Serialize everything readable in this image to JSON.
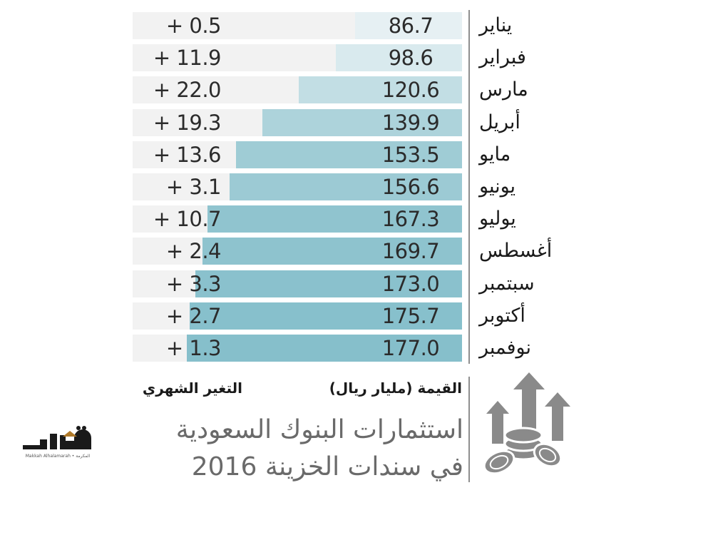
{
  "chart_data": {
    "type": "bar",
    "title": "استثمارات البنوك السعودية",
    "subtitle": "في سندات الخزينة 2016",
    "value_label": "القيمة (مليار ريال)",
    "change_label": "التغير الشهري",
    "categories": [
      "يناير",
      "فبراير",
      "مارس",
      "أبريل",
      "مايو",
      "يونيو",
      "يوليو",
      "أغسطس",
      "سبتمبر",
      "أكتوبر",
      "نوفمبر"
    ],
    "series": [
      {
        "values": [
          86.7,
          98.6,
          120.6,
          139.9,
          153.5,
          156.6,
          167.3,
          169.7,
          173.0,
          175.7,
          177.0
        ]
      }
    ],
    "value_labels": [
      "86.7",
      "98.6",
      "120.6",
      "139.9",
      "153.5",
      "156.6",
      "167.3",
      "169.7",
      "173.0",
      "175.7",
      "177.0"
    ],
    "change_labels": [
      "+ 0.5",
      "+ 11.9",
      "+ 22.0",
      "+ 19.3",
      "+ 13.6",
      "+ 3.1",
      "+ 10.7",
      "+ 2.4",
      "+ 3.3",
      "+ 2.7",
      "+ 1.3"
    ],
    "orientation": "horizontal",
    "bar_direction": "right-to-left",
    "grid": false,
    "colors": {
      "bar_light": "#e6f0f3",
      "bar_dark": "#86bfcb",
      "row_background": "#f2f2f2",
      "text": "#2b2b2b",
      "title": "#6a6a6a"
    }
  },
  "brand": {
    "logo_text": "مكة",
    "logo_caption": "Makkah Alhalamarah • المكرمة"
  }
}
